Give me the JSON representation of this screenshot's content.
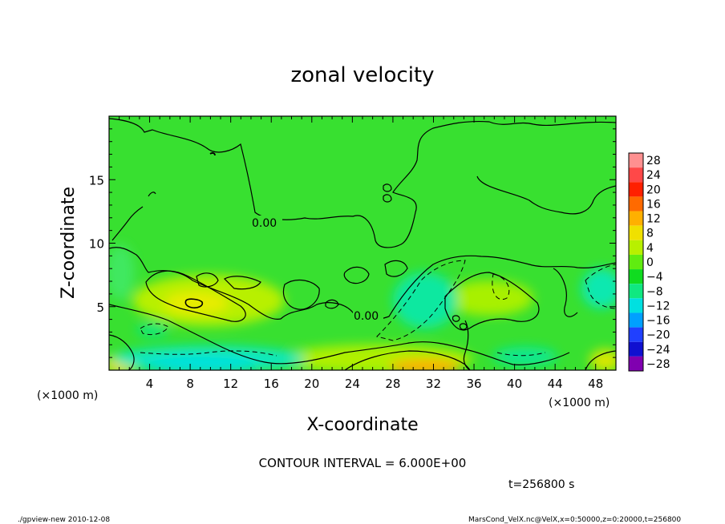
{
  "chart_data": {
    "type": "heatmap",
    "title": "zonal velocity",
    "xlabel": "X-coordinate",
    "ylabel": "Z-coordinate",
    "x_unit_label": "(×1000 m)",
    "y_unit_label": "(×1000 m)",
    "xlim": [
      0,
      50
    ],
    "ylim": [
      0,
      20
    ],
    "x_ticks": [
      4,
      8,
      12,
      16,
      20,
      24,
      28,
      32,
      36,
      40,
      44,
      48
    ],
    "y_ticks": [
      5,
      10,
      15
    ],
    "contour_label": "0.00",
    "contour_interval_text": "CONTOUR INTERVAL = 6.000E+00",
    "time_text": "t=256800 s",
    "colorbar": {
      "levels": [
        28,
        24,
        20,
        16,
        12,
        8,
        4,
        0,
        -4,
        -8,
        -12,
        -16,
        -20,
        -24,
        -28
      ],
      "colors": [
        "#ff9090",
        "#ff4848",
        "#ff2000",
        "#ff6a00",
        "#ffb000",
        "#f0e000",
        "#b8f000",
        "#60ec10",
        "#10dc20",
        "#10e880",
        "#00e0e0",
        "#00a0ff",
        "#2040ff",
        "#1010d0",
        "#8000b0"
      ]
    }
  },
  "footer": {
    "left": "./gpview-new  2010-12-08",
    "right": "MarsCond_VelX.nc@VelX,x=0:50000,z=0:20000,t=256800"
  }
}
